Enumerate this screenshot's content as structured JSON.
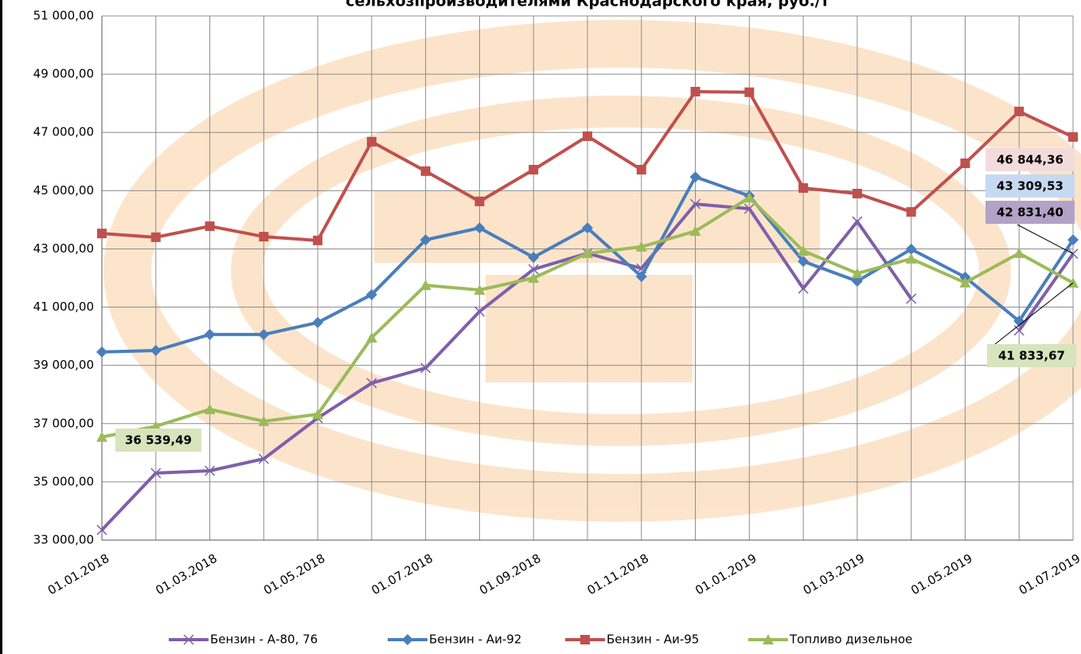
{
  "chart_data": {
    "type": "line",
    "title": "сельхозпроизводителями Краснодарского края, руб./т",
    "categories": [
      "01.01.2018",
      null,
      "01.03.2018",
      null,
      "01.05.2018",
      null,
      "01.07.2018",
      null,
      "01.09.2018",
      null,
      "01.11.2018",
      null,
      "01.01.2019",
      null,
      "01.03.2019",
      null,
      "01.05.2019",
      null,
      "01.07.2019"
    ],
    "ylim": [
      33000,
      51000
    ],
    "yticks": [
      {
        "value": 33000,
        "label": "33 000,00"
      },
      {
        "value": 35000,
        "label": "35 000,00"
      },
      {
        "value": 37000,
        "label": "37 000,00"
      },
      {
        "value": 39000,
        "label": "39 000,00"
      },
      {
        "value": 41000,
        "label": "41 000,00"
      },
      {
        "value": 43000,
        "label": "43 000,00"
      },
      {
        "value": 45000,
        "label": "45 000,00"
      },
      {
        "value": 47000,
        "label": "47 000,00"
      },
      {
        "value": 49000,
        "label": "49 000,00"
      },
      {
        "value": 51000,
        "label": "51 000,00"
      }
    ],
    "grid": true,
    "legend": "bottom",
    "series": [
      {
        "name": "Бензин - А-80, 76",
        "color": "#7f5fa8",
        "marker": "x",
        "values": [
          33350,
          35300,
          35380,
          35790,
          37190,
          38390,
          38910,
          40850,
          42300,
          42850,
          42330,
          44540,
          44380,
          41640,
          43940,
          41290,
          null,
          40200,
          42831.4
        ],
        "value_labels": [
          null,
          null,
          null,
          null,
          null,
          null,
          null,
          null,
          null,
          null,
          null,
          null,
          null,
          null,
          null,
          null,
          null,
          null,
          "42 831,40"
        ]
      },
      {
        "name": "Бензин - Аи-92",
        "color": "#4a7ebb",
        "marker": "diamond",
        "values": [
          39460,
          39510,
          40060,
          40060,
          40470,
          41430,
          43310,
          43720,
          42710,
          43720,
          42050,
          45470,
          44820,
          42570,
          41890,
          42990,
          42030,
          40520,
          43309.53
        ],
        "value_labels": [
          null,
          null,
          null,
          null,
          null,
          null,
          null,
          null,
          null,
          null,
          null,
          null,
          null,
          null,
          null,
          null,
          null,
          null,
          "43 309,53"
        ]
      },
      {
        "name": "Бензин - Аи-95",
        "color": "#c0504d",
        "marker": "square",
        "values": [
          43530,
          43400,
          43780,
          43420,
          43290,
          46680,
          45670,
          44630,
          45720,
          46870,
          45720,
          48400,
          48380,
          45090,
          44900,
          44270,
          45940,
          47720,
          46844.36
        ],
        "value_labels": [
          null,
          null,
          null,
          null,
          null,
          null,
          null,
          null,
          null,
          null,
          null,
          null,
          null,
          null,
          null,
          null,
          null,
          null,
          "46 844,36"
        ]
      },
      {
        "name": "Топливо дизельное",
        "color": "#9bbb59",
        "marker": "triangle",
        "values": [
          36539.49,
          36910,
          37490,
          37080,
          37320,
          39950,
          41750,
          41590,
          42000,
          42850,
          43070,
          43610,
          44760,
          42930,
          42160,
          42660,
          41840,
          42850,
          41833.67
        ],
        "value_labels": [
          "36 539,49",
          null,
          null,
          null,
          null,
          null,
          null,
          null,
          null,
          null,
          null,
          null,
          null,
          null,
          null,
          null,
          null,
          null,
          "41 833,67"
        ]
      }
    ]
  }
}
